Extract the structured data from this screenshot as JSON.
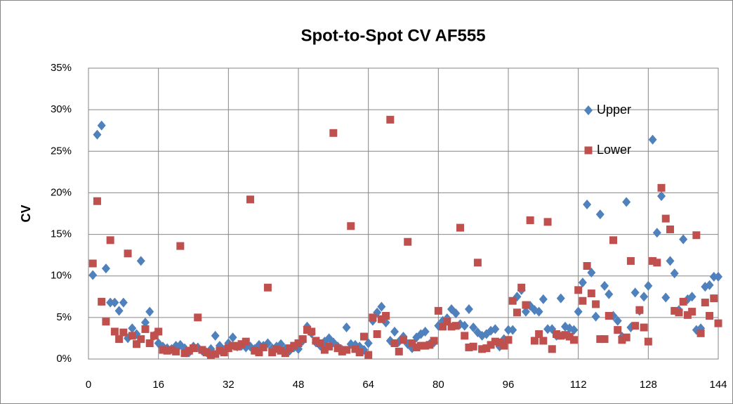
{
  "chart_data": {
    "type": "scatter",
    "title": "Spot-to-Spot CV AF555",
    "y_label": "CV",
    "x": [
      1,
      2,
      3,
      4,
      5,
      6,
      7,
      8,
      9,
      10,
      11,
      12,
      13,
      14,
      15,
      16,
      17,
      18,
      19,
      20,
      21,
      22,
      23,
      24,
      25,
      26,
      27,
      28,
      29,
      30,
      31,
      32,
      33,
      34,
      35,
      36,
      37,
      38,
      39,
      40,
      41,
      42,
      43,
      44,
      45,
      46,
      47,
      48,
      49,
      50,
      51,
      52,
      53,
      54,
      55,
      56,
      57,
      58,
      59,
      60,
      61,
      62,
      63,
      64,
      65,
      66,
      67,
      68,
      69,
      70,
      71,
      72,
      73,
      74,
      75,
      76,
      77,
      78,
      79,
      80,
      81,
      82,
      83,
      84,
      85,
      86,
      87,
      88,
      89,
      90,
      91,
      92,
      93,
      94,
      95,
      96,
      97,
      98,
      99,
      100,
      101,
      102,
      103,
      104,
      105,
      106,
      107,
      108,
      109,
      110,
      111,
      112,
      113,
      114,
      115,
      116,
      117,
      118,
      119,
      120,
      121,
      122,
      123,
      124,
      125,
      126,
      127,
      128,
      129,
      130,
      131,
      132,
      133,
      134,
      135,
      136,
      137,
      138,
      139,
      140,
      141,
      142,
      143,
      144
    ],
    "series": [
      {
        "name": "Upper",
        "color": "#4f81bd",
        "marker": "diamond",
        "values": [
          10.1,
          27.0,
          28.1,
          10.9,
          6.8,
          6.8,
          5.8,
          6.8,
          2.5,
          3.7,
          3.0,
          11.8,
          4.4,
          5.7,
          2.8,
          1.9,
          1.5,
          1.3,
          1.2,
          1.6,
          1.7,
          1.3,
          0.8,
          1.5,
          1.4,
          1.0,
          0.8,
          1.2,
          2.8,
          1.6,
          1.1,
          1.9,
          2.6,
          1.5,
          1.6,
          1.4,
          1.5,
          1.2,
          1.7,
          1.6,
          1.9,
          1.3,
          1.5,
          1.8,
          1.2,
          1.0,
          1.4,
          1.2,
          2.2,
          3.9,
          3.1,
          2.0,
          1.6,
          2.1,
          2.5,
          2.0,
          1.5,
          1.1,
          3.8,
          1.8,
          1.7,
          1.5,
          1.1,
          1.9,
          4.6,
          5.6,
          6.3,
          4.4,
          2.2,
          3.3,
          2.1,
          2.7,
          1.8,
          1.3,
          2.6,
          3.0,
          3.3,
          1.8,
          2.0,
          4.0,
          4.6,
          4.9,
          6.0,
          5.5,
          4.2,
          4.0,
          6.0,
          3.8,
          3.2,
          2.8,
          3.0,
          3.4,
          3.6,
          1.5,
          2.4,
          3.5,
          3.5,
          7.5,
          8.3,
          5.7,
          6.4,
          5.9,
          5.7,
          7.2,
          3.6,
          3.6,
          2.8,
          7.3,
          3.9,
          3.7,
          3.5,
          5.7,
          9.2,
          18.6,
          10.4,
          5.1,
          17.4,
          8.8,
          7.8,
          5.2,
          4.6,
          2.7,
          18.9,
          3.8,
          8.0,
          5.8,
          7.5,
          8.8,
          26.4,
          15.2,
          19.6,
          7.4,
          11.8,
          10.3,
          5.9,
          14.4,
          7.2,
          7.5,
          3.5,
          3.7,
          8.7,
          8.9,
          9.9,
          9.9
        ]
      },
      {
        "name": "Lower",
        "color": "#c0504d",
        "marker": "square",
        "values": [
          11.5,
          19.0,
          6.9,
          4.5,
          14.3,
          3.3,
          2.4,
          3.2,
          12.7,
          2.8,
          1.8,
          2.4,
          3.6,
          1.9,
          2.8,
          3.3,
          1.1,
          1.0,
          1.1,
          0.9,
          13.6,
          0.7,
          1.0,
          1.3,
          5.0,
          1.1,
          0.8,
          0.5,
          0.6,
          1.0,
          0.8,
          1.3,
          1.6,
          1.5,
          1.8,
          2.1,
          19.2,
          1.0,
          0.8,
          1.4,
          8.6,
          0.8,
          1.2,
          1.0,
          0.7,
          1.3,
          1.6,
          1.9,
          2.4,
          3.5,
          3.3,
          2.2,
          1.9,
          1.1,
          1.5,
          27.2,
          1.3,
          0.9,
          1.1,
          16.0,
          1.2,
          0.8,
          2.7,
          0.5,
          5.0,
          3.0,
          4.8,
          5.2,
          28.8,
          1.9,
          0.9,
          2.3,
          14.1,
          1.9,
          1.4,
          1.6,
          1.6,
          1.7,
          2.2,
          5.8,
          3.9,
          4.5,
          3.9,
          4.0,
          15.8,
          2.8,
          1.4,
          1.5,
          11.6,
          1.2,
          1.3,
          1.7,
          2.1,
          2.0,
          1.6,
          2.3,
          7.0,
          5.6,
          8.6,
          6.5,
          16.7,
          2.2,
          3.0,
          2.2,
          16.5,
          1.2,
          3.0,
          2.8,
          2.9,
          2.7,
          2.3,
          8.3,
          7.0,
          11.2,
          7.9,
          6.6,
          2.4,
          2.4,
          5.2,
          14.3,
          3.5,
          2.3,
          2.6,
          11.8,
          4.0,
          5.9,
          3.8,
          2.1,
          11.8,
          11.6,
          20.6,
          16.9,
          15.6,
          5.8,
          5.6,
          6.9,
          5.3,
          5.7,
          14.9,
          3.1,
          6.8,
          5.2,
          7.3,
          4.3
        ]
      }
    ],
    "xlim": [
      0,
      144
    ],
    "xticks": [
      0,
      16,
      32,
      48,
      64,
      80,
      96,
      112,
      128,
      144
    ],
    "ylim": [
      0,
      35
    ],
    "yticks": [
      {
        "value": 0,
        "label": "0%"
      },
      {
        "value": 5,
        "label": "5%"
      },
      {
        "value": 10,
        "label": "10%"
      },
      {
        "value": 15,
        "label": "15%"
      },
      {
        "value": 20,
        "label": "20%"
      },
      {
        "value": 25,
        "label": "25%"
      },
      {
        "value": 30,
        "label": "30%"
      },
      {
        "value": 35,
        "label": "35%"
      }
    ],
    "grid": true,
    "legend": "upper-right"
  }
}
